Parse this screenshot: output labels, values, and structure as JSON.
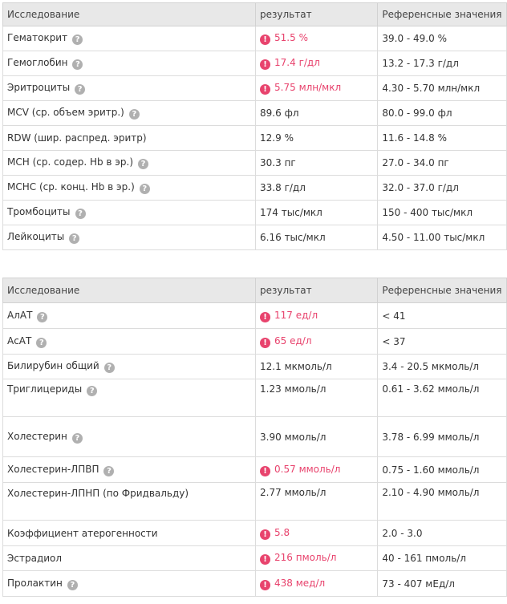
{
  "table1": {
    "headers": [
      "Исследование",
      "результат",
      "Референсные значения"
    ],
    "rows": [
      {
        "name": "Гематокрит",
        "value": "51.5 %",
        "ref": "39.0 - 49.0 %",
        "abnormal": true
      },
      {
        "name": "Гемоглобин",
        "value": "17.4 г/дл",
        "ref": "13.2 - 17.3 г/дл",
        "abnormal": true
      },
      {
        "name": "Эритроциты",
        "value": "5.75 млн/мкл",
        "ref": "4.30 - 5.70 млн/мкл",
        "abnormal": true
      },
      {
        "name": "MCV (ср. объем эритр.)",
        "value": "89.6 фл",
        "ref": "80.0 - 99.0 фл",
        "abnormal": false
      },
      {
        "name": "RDW (шир. распред. эритр)",
        "value": "12.9 %",
        "ref": "11.6 - 14.8 %",
        "abnormal": false
      },
      {
        "name": "MCH (ср. содер. Hb в эр.)",
        "value": "30.3 пг",
        "ref": "27.0 - 34.0 пг",
        "abnormal": false
      },
      {
        "name": "MCHC (ср. конц. Hb в эр.)",
        "value": "33.8 г/дл",
        "ref": "32.0 - 37.0 г/дл",
        "abnormal": false
      },
      {
        "name": "Тромбоциты",
        "value": "174 тыс/мкл",
        "ref": "150 - 400 тыс/мкл",
        "abnormal": false
      },
      {
        "name": "Лейкоциты",
        "value": "6.16 тыс/мкл",
        "ref": "4.50 - 11.00 тыс/мкл",
        "abnormal": false
      }
    ]
  },
  "table2": {
    "headers": [
      "Исследование",
      "результат",
      "Референсные значения"
    ],
    "rows": [
      {
        "name": "АлАТ",
        "value": "117 ед/л",
        "ref": "< 41",
        "abnormal": true
      },
      {
        "name": "АсАТ",
        "value": "65 ед/л",
        "ref": "< 37",
        "abnormal": true
      },
      {
        "name": "Билирубин общий",
        "value": "12.1 мкмоль/л",
        "ref": "3.4 - 20.5 мкмоль/л",
        "abnormal": false
      },
      {
        "name": "Триглицериды",
        "value": "1.23 ммоль/л",
        "ref": "0.61 - 3.62 ммоль/л",
        "abnormal": false
      },
      {
        "name": "Холестерин",
        "value": "3.90 ммоль/л",
        "ref": "3.78 - 6.99 ммоль/л",
        "abnormal": false
      },
      {
        "name": "Холестерин-ЛПВП",
        "value": "0.57 ммоль/л",
        "ref": "0.75 - 1.60 ммоль/л",
        "abnormal": true
      },
      {
        "name": "Холестерин-ЛПНП (по Фридвальду)",
        "value": "2.77 ммоль/л",
        "ref": "2.10 - 4.90 ммоль/л",
        "abnormal": false
      },
      {
        "name": "Коэффициент атерогенности",
        "value": "5.8",
        "ref": "2.0 - 3.0",
        "abnormal": true
      },
      {
        "name": "Эстрадиол",
        "value": "216 пмоль/л",
        "ref": "40 - 161 пмоль/л",
        "abnormal": true
      },
      {
        "name": "Пролактин",
        "value": "438 мед/л",
        "ref": "73 - 407 мЕд/л",
        "abnormal": true
      }
    ]
  },
  "icons": {
    "help": "?",
    "alert": "!"
  },
  "colors": {
    "abnormal": "#e8436d",
    "header_bg": "#e8e8e8",
    "help_icon": "#b0b0b0"
  }
}
